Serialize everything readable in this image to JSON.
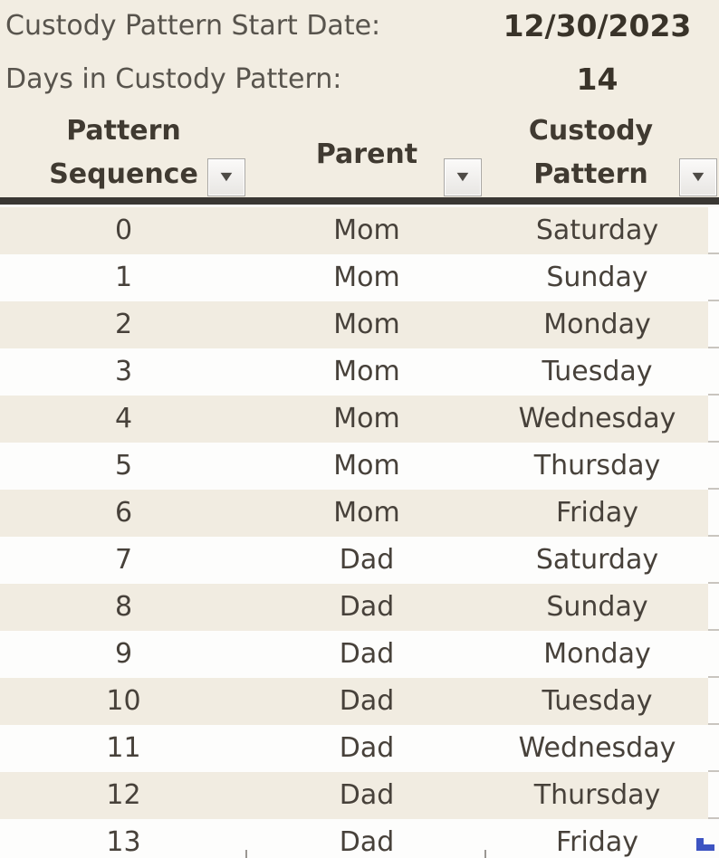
{
  "info": {
    "rows": [
      {
        "label": "Custody Pattern Start Date:",
        "value": "12/30/2023"
      },
      {
        "label": "Days in Custody Pattern:",
        "value": "14"
      }
    ]
  },
  "icons": {
    "filter_dropdown": "▼"
  },
  "colors": {
    "background": "#f2ede2",
    "row_stripe": "#f1ece1",
    "row_white": "#fdfdfc",
    "header_rule": "#3a3733",
    "text_header": "#403a31",
    "text_body": "#47413a",
    "accent_blue": "#3d54c2"
  },
  "table": {
    "headers": [
      {
        "line1": "Pattern",
        "line2": "Sequence"
      },
      {
        "line1": "Parent"
      },
      {
        "line1": "Custody",
        "line2": "Pattern"
      }
    ],
    "rows": [
      {
        "sequence": "0",
        "parent": "Mom",
        "custody_pattern": "Saturday"
      },
      {
        "sequence": "1",
        "parent": "Mom",
        "custody_pattern": "Sunday"
      },
      {
        "sequence": "2",
        "parent": "Mom",
        "custody_pattern": "Monday"
      },
      {
        "sequence": "3",
        "parent": "Mom",
        "custody_pattern": "Tuesday"
      },
      {
        "sequence": "4",
        "parent": "Mom",
        "custody_pattern": "Wednesday"
      },
      {
        "sequence": "5",
        "parent": "Mom",
        "custody_pattern": "Thursday"
      },
      {
        "sequence": "6",
        "parent": "Mom",
        "custody_pattern": "Friday"
      },
      {
        "sequence": "7",
        "parent": "Dad",
        "custody_pattern": "Saturday"
      },
      {
        "sequence": "8",
        "parent": "Dad",
        "custody_pattern": "Sunday"
      },
      {
        "sequence": "9",
        "parent": "Dad",
        "custody_pattern": "Monday"
      },
      {
        "sequence": "10",
        "parent": "Dad",
        "custody_pattern": "Tuesday"
      },
      {
        "sequence": "11",
        "parent": "Dad",
        "custody_pattern": "Wednesday"
      },
      {
        "sequence": "12",
        "parent": "Dad",
        "custody_pattern": "Thursday"
      },
      {
        "sequence": "13",
        "parent": "Dad",
        "custody_pattern": "Friday"
      }
    ]
  }
}
